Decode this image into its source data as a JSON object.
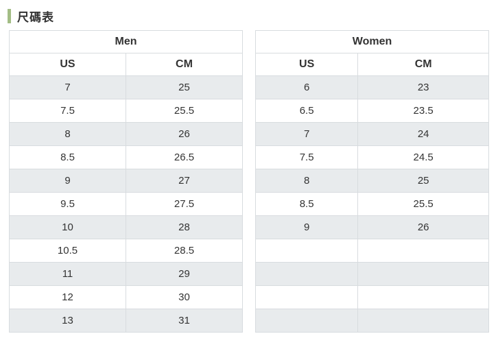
{
  "page": {
    "title": "尺碼表"
  },
  "colors": {
    "accent": "#a3bd85",
    "row_alt": "#e8ebed",
    "border": "#d8dcdf",
    "text": "#333333"
  },
  "tables": [
    {
      "title": "Men",
      "columns": [
        "US",
        "CM"
      ],
      "rows": [
        [
          "7",
          "25"
        ],
        [
          "7.5",
          "25.5"
        ],
        [
          "8",
          "26"
        ],
        [
          "8.5",
          "26.5"
        ],
        [
          "9",
          "27"
        ],
        [
          "9.5",
          "27.5"
        ],
        [
          "10",
          "28"
        ],
        [
          "10.5",
          "28.5"
        ],
        [
          "11",
          "29"
        ],
        [
          "12",
          "30"
        ],
        [
          "13",
          "31"
        ]
      ]
    },
    {
      "title": "Women",
      "columns": [
        "US",
        "CM"
      ],
      "rows": [
        [
          "6",
          "23"
        ],
        [
          "6.5",
          "23.5"
        ],
        [
          "7",
          "24"
        ],
        [
          "7.5",
          "24.5"
        ],
        [
          "8",
          "25"
        ],
        [
          "8.5",
          "25.5"
        ],
        [
          "9",
          "26"
        ],
        [
          "",
          ""
        ],
        [
          "",
          ""
        ],
        [
          "",
          ""
        ],
        [
          "",
          ""
        ]
      ]
    }
  ]
}
